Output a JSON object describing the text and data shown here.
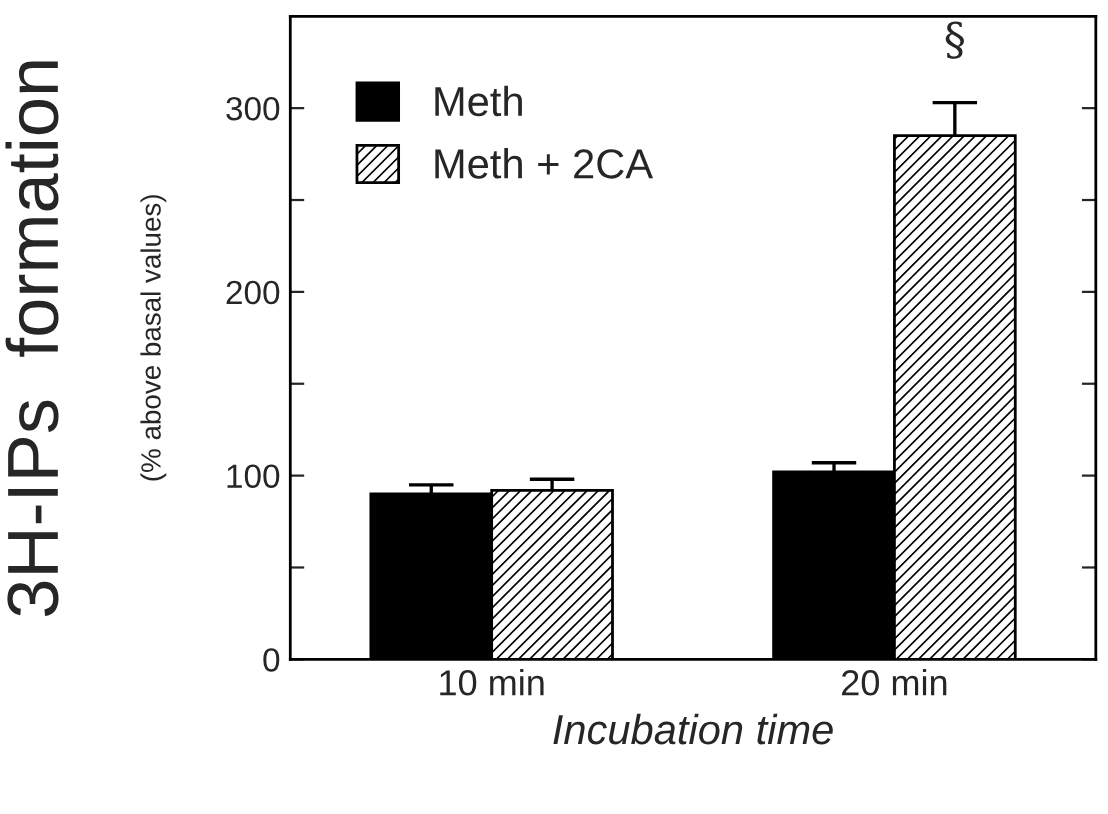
{
  "chart_data": {
    "type": "bar",
    "xlabel": "Incubation time",
    "ylabel": "3H-IPs  formation",
    "categories": [
      "10 min",
      "20 min"
    ],
    "series": [
      {
        "name": "Meth",
        "color": "#000000",
        "values": [
          90,
          102
        ],
        "errors": [
          5,
          5
        ]
      },
      {
        "name": "Meth + 2CA",
        "color": "#000000",
        "values": [
          92,
          285
        ],
        "errors": [
          6,
          18
        ]
      }
    ],
    "ylim": [
      0,
      350
    ],
    "yticks": [
      0,
      {
        "value": 50,
        "label": null
      },
      100,
      {
        "value": 150,
        "label": null
      },
      200,
      {
        "value": 250,
        "label": null
      },
      300
    ],
    "legend": "top left",
    "grid": false,
    "annotations": [
      "(% above basal values)",
      "§"
    ]
  }
}
